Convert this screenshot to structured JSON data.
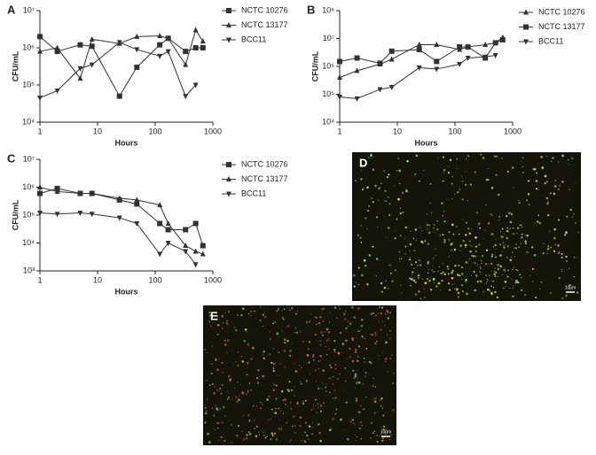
{
  "chart_data": [
    {
      "type": "line",
      "panel": "A",
      "x_label": "Hours",
      "y_label": "CFU/mL",
      "log_x": true,
      "log_y": true,
      "x": [
        1,
        2,
        5,
        8,
        24,
        48,
        120,
        168,
        336,
        504,
        672
      ],
      "xlim": [
        1,
        1000
      ],
      "xticks": [
        1,
        10,
        100,
        1000
      ],
      "ylim": [
        10000,
        10000000
      ],
      "yticks": [
        {
          "value": 10000,
          "label": "10⁴"
        },
        {
          "value": 100000,
          "label": "10⁵"
        },
        {
          "value": 1000000,
          "label": "10⁶"
        },
        {
          "value": 10000000,
          "label": "10⁷"
        }
      ],
      "series": [
        {
          "name": "NCTC 10276",
          "marker": "square",
          "color": "#333333",
          "values": [
            2000000,
            800000,
            1200000,
            1100000,
            50000,
            300000,
            1200000,
            1800000,
            800000,
            1000000,
            1000000
          ]
        },
        {
          "name": "NCTC 13177",
          "marker": "triangle-up",
          "color": "#333333",
          "values": [
            800000,
            1000000,
            150000,
            1700000,
            1300000,
            2000000,
            2100000,
            1800000,
            350000,
            3000000,
            1500000
          ]
        },
        {
          "name": "BCC11",
          "marker": "triangle-down",
          "color": "#333333",
          "values": [
            45000,
            70000,
            280000,
            350000,
            1400000,
            900000,
            600000,
            800000,
            50000,
            100000,
            null
          ]
        }
      ]
    },
    {
      "type": "line",
      "panel": "B",
      "x_label": "Hours",
      "y_label": "CFU/mL",
      "log_x": true,
      "log_y": true,
      "x": [
        1,
        2,
        5,
        8,
        24,
        48,
        120,
        168,
        336,
        504,
        672
      ],
      "xlim": [
        1,
        1000
      ],
      "xticks": [
        1,
        10,
        100,
        1000
      ],
      "ylim": [
        10000,
        100000000
      ],
      "yticks": [
        {
          "value": 10000,
          "label": "10⁴"
        },
        {
          "value": 100000,
          "label": "10⁵"
        },
        {
          "value": 1000000,
          "label": "10⁶"
        },
        {
          "value": 10000000,
          "label": "10⁷"
        },
        {
          "value": 100000000,
          "label": "10⁸"
        }
      ],
      "series": [
        {
          "name": "NCTC 10276",
          "marker": "triangle-up",
          "color": "#333333",
          "values": [
            400000,
            700000,
            1200000,
            1800000,
            6000000,
            6000000,
            4000000,
            5000000,
            6000000,
            7000000,
            11000000
          ]
        },
        {
          "name": "NCTC 13177",
          "marker": "square",
          "color": "#333333",
          "values": [
            1500000,
            2000000,
            1300000,
            3500000,
            4000000,
            1500000,
            5000000,
            5000000,
            2000000,
            7000000,
            9000000
          ]
        },
        {
          "name": "BCC11",
          "marker": "triangle-down",
          "color": "#333333",
          "values": [
            80000,
            70000,
            150000,
            180000,
            900000,
            800000,
            1200000,
            2000000,
            2200000,
            2500000,
            null
          ]
        }
      ]
    },
    {
      "type": "line",
      "panel": "C",
      "x_label": "Hours",
      "y_label": "CFU/mL",
      "log_x": true,
      "log_y": true,
      "x": [
        1,
        2,
        5,
        8,
        24,
        48,
        120,
        168,
        336,
        504,
        672
      ],
      "xlim": [
        1,
        1000
      ],
      "xticks": [
        1,
        10,
        100,
        1000
      ],
      "ylim": [
        1000,
        10000000
      ],
      "yticks": [
        {
          "value": 1000,
          "label": "10³"
        },
        {
          "value": 10000,
          "label": "10⁴"
        },
        {
          "value": 100000,
          "label": "10⁵"
        },
        {
          "value": 1000000,
          "label": "10⁶"
        },
        {
          "value": 10000000,
          "label": "10⁷"
        }
      ],
      "series": [
        {
          "name": "NCTC 10276",
          "marker": "square",
          "color": "#333333",
          "values": [
            600000,
            900000,
            600000,
            600000,
            350000,
            250000,
            50000,
            30000,
            30000,
            50000,
            8000
          ]
        },
        {
          "name": "NCTC 13177",
          "marker": "triangle-up",
          "color": "#333333",
          "values": [
            1000000,
            700000,
            600000,
            600000,
            400000,
            350000,
            230000,
            50000,
            8000,
            5000,
            4000
          ]
        },
        {
          "name": "BCC11",
          "marker": "triangle-down",
          "color": "#333333",
          "values": [
            120000,
            110000,
            120000,
            110000,
            80000,
            50000,
            4000,
            10000,
            5000,
            1700,
            null
          ]
        }
      ]
    }
  ],
  "images": [
    {
      "panel": "D",
      "scale_bar": "10μm"
    },
    {
      "panel": "E",
      "scale_bar": "10μm"
    }
  ]
}
